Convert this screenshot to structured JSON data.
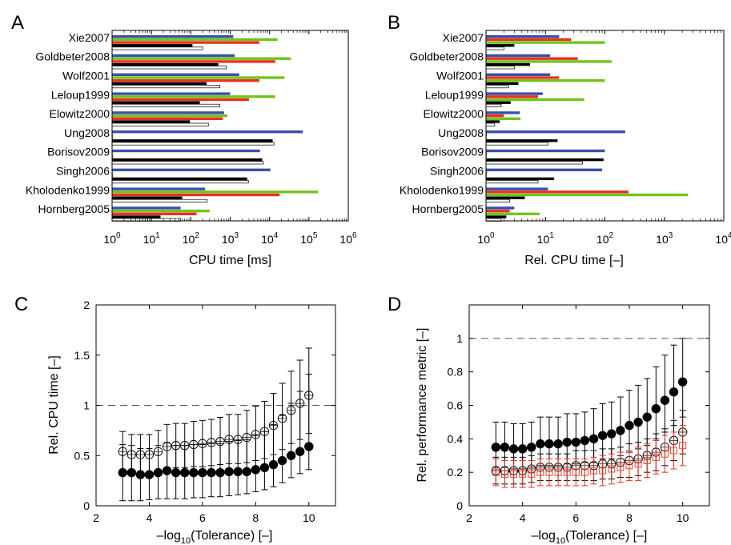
{
  "colors": {
    "blue": "#3a4fae",
    "red": "#e8321e",
    "green": "#72c41c",
    "black": "#000000",
    "white": "#ffffff",
    "dash": "#555555"
  },
  "chart_data": [
    {
      "panel": "A",
      "type": "bar",
      "orientation": "horizontal",
      "xscale": "log",
      "xlabel": "CPU time [ms]",
      "xlim": [
        1,
        1000000
      ],
      "xticks": [
        {
          "value": 1,
          "base": "10",
          "exp": "0"
        },
        {
          "value": 10,
          "base": "10",
          "exp": "1"
        },
        {
          "value": 100,
          "base": "10",
          "exp": "2"
        },
        {
          "value": 1000,
          "base": "10",
          "exp": "3"
        },
        {
          "value": 10000,
          "base": "10",
          "exp": "4"
        },
        {
          "value": 100000,
          "base": "10",
          "exp": "5"
        },
        {
          "value": 1000000,
          "base": "10",
          "exp": "6"
        }
      ],
      "categories": [
        "Xie2007",
        "Goldbeter2008",
        "Wolf2001",
        "Leloup1999",
        "Elowitz2000",
        "Ung2008",
        "Borisov2009",
        "Singh2006",
        "Kholodenko1999",
        "Hornberg2005"
      ],
      "series": [
        {
          "color": "blue",
          "values": [
            1200,
            1300,
            1700,
            1000,
            700,
            70000,
            5700,
            10500,
            230,
            55
          ]
        },
        {
          "color": "green",
          "values": [
            16000,
            35000,
            24000,
            14000,
            850,
            1,
            1,
            1,
            170000,
            300
          ]
        },
        {
          "color": "red",
          "values": [
            5500,
            14000,
            5500,
            3000,
            650,
            1,
            1,
            1,
            18000,
            140
          ]
        },
        {
          "color": "black",
          "values": [
            110,
            500,
            250,
            170,
            95,
            12000,
            6500,
            2700,
            60,
            17
          ]
        },
        {
          "color": "white",
          "values": [
            200,
            800,
            550,
            550,
            280,
            13000,
            7000,
            2900,
            260,
            55
          ]
        }
      ]
    },
    {
      "panel": "B",
      "type": "bar",
      "orientation": "horizontal",
      "xscale": "log",
      "xlabel": "Rel. CPU time [–]",
      "xlim": [
        1,
        10000
      ],
      "xticks": [
        {
          "value": 1,
          "base": "10",
          "exp": "0"
        },
        {
          "value": 10,
          "base": "10",
          "exp": "1"
        },
        {
          "value": 100,
          "base": "10",
          "exp": "2"
        },
        {
          "value": 1000,
          "base": "10",
          "exp": "3"
        },
        {
          "value": 10000,
          "base": "10",
          "exp": "4"
        }
      ],
      "categories": [
        "Xie2007",
        "Goldbeter2008",
        "Wolf2001",
        "Leloup1999",
        "Elowitz2000",
        "Ung2008",
        "Borisov2009",
        "Singh2006",
        "Kholodenko1999",
        "Hornberg2005"
      ],
      "series": [
        {
          "color": "blue",
          "values": [
            17,
            12,
            12,
            9,
            3.7,
            220,
            100,
            90,
            11,
            3
          ]
        },
        {
          "color": "red",
          "values": [
            27,
            35,
            17,
            7.5,
            2,
            1,
            1,
            1,
            250,
            2.5
          ]
        },
        {
          "color": "green",
          "values": [
            100,
            130,
            100,
            45,
            3.8,
            1,
            1,
            1,
            2500,
            8
          ]
        },
        {
          "color": "black",
          "values": [
            3,
            5.5,
            3.5,
            2.6,
            1.7,
            16,
            95,
            14,
            4.5,
            2.2
          ]
        },
        {
          "color": "white",
          "values": [
            2,
            3,
            2.4,
            1.8,
            1.4,
            11,
            42,
            7.5,
            2.5,
            1.8
          ]
        }
      ]
    },
    {
      "panel": "C",
      "type": "scatter",
      "xlabel_main": "–log",
      "xlabel_sub": "10",
      "xlabel_rest": "(Tolerance) [–]",
      "ylabel": "Rel. CPU time [–]",
      "xlim": [
        2,
        11
      ],
      "ylim": [
        0,
        2
      ],
      "xticks": [
        2,
        4,
        6,
        8,
        10
      ],
      "yticks": [
        0,
        0.5,
        1,
        1.5,
        2
      ],
      "reference_line": 1,
      "x": [
        3.0,
        3.333,
        3.667,
        4.0,
        4.333,
        4.667,
        5.0,
        5.333,
        5.667,
        6.0,
        6.333,
        6.667,
        7.0,
        7.333,
        7.667,
        8.0,
        8.333,
        8.667,
        9.0,
        9.333,
        9.667,
        10.0
      ],
      "series": [
        {
          "marker": "filled-circle",
          "values": [
            0.33,
            0.33,
            0.31,
            0.31,
            0.33,
            0.35,
            0.33,
            0.33,
            0.33,
            0.33,
            0.33,
            0.33,
            0.34,
            0.34,
            0.34,
            0.36,
            0.38,
            0.41,
            0.45,
            0.5,
            0.54,
            0.59
          ],
          "err_low": [
            0.28,
            0.28,
            0.26,
            0.25,
            0.26,
            0.28,
            0.26,
            0.26,
            0.25,
            0.25,
            0.24,
            0.24,
            0.24,
            0.23,
            0.22,
            0.22,
            0.22,
            0.22,
            0.22,
            0.22,
            0.22,
            0.23
          ],
          "err_high": [
            0.28,
            0.27,
            0.26,
            0.26,
            0.27,
            0.28,
            0.27,
            0.27,
            0.28,
            0.28,
            0.29,
            0.29,
            0.3,
            0.31,
            0.32,
            0.34,
            0.36,
            0.4,
            0.45,
            0.52,
            0.6,
            0.72
          ]
        },
        {
          "marker": "open-circle",
          "values": [
            0.54,
            0.51,
            0.51,
            0.51,
            0.54,
            0.59,
            0.6,
            0.6,
            0.61,
            0.62,
            0.63,
            0.64,
            0.66,
            0.66,
            0.68,
            0.71,
            0.74,
            0.8,
            0.87,
            0.95,
            1.02,
            1.1
          ],
          "err_low": [
            0.2,
            0.2,
            0.2,
            0.2,
            0.21,
            0.22,
            0.22,
            0.22,
            0.22,
            0.23,
            0.23,
            0.23,
            0.24,
            0.24,
            0.25,
            0.26,
            0.27,
            0.29,
            0.31,
            0.33,
            0.36,
            0.38
          ],
          "err_high": [
            0.2,
            0.2,
            0.2,
            0.2,
            0.21,
            0.22,
            0.22,
            0.22,
            0.23,
            0.23,
            0.23,
            0.24,
            0.25,
            0.25,
            0.27,
            0.28,
            0.3,
            0.32,
            0.35,
            0.39,
            0.43,
            0.47
          ]
        }
      ]
    },
    {
      "panel": "D",
      "type": "scatter",
      "xlabel_main": "–log",
      "xlabel_sub": "10",
      "xlabel_rest": "(Tolerance) [–]",
      "ylabel": "Rel. performance metric [–]",
      "xlim": [
        2,
        11
      ],
      "ylim": [
        0,
        1.2
      ],
      "xticks": [
        2,
        4,
        6,
        8,
        10
      ],
      "yticks": [
        0,
        0.2,
        0.4,
        0.6,
        0.8,
        1
      ],
      "reference_line": 1,
      "x": [
        3.0,
        3.333,
        3.667,
        4.0,
        4.333,
        4.667,
        5.0,
        5.333,
        5.667,
        6.0,
        6.333,
        6.667,
        7.0,
        7.333,
        7.667,
        8.0,
        8.333,
        8.667,
        9.0,
        9.333,
        9.667,
        10.0
      ],
      "series": [
        {
          "marker": "filled-circle",
          "values": [
            0.35,
            0.35,
            0.34,
            0.34,
            0.35,
            0.37,
            0.37,
            0.37,
            0.38,
            0.38,
            0.39,
            0.4,
            0.42,
            0.43,
            0.45,
            0.48,
            0.5,
            0.53,
            0.58,
            0.63,
            0.68,
            0.74
          ],
          "err_low": [
            0.12,
            0.12,
            0.12,
            0.12,
            0.12,
            0.13,
            0.13,
            0.13,
            0.13,
            0.13,
            0.13,
            0.14,
            0.14,
            0.15,
            0.15,
            0.16,
            0.16,
            0.17,
            0.18,
            0.19,
            0.2,
            0.21
          ],
          "err_high": [
            0.15,
            0.15,
            0.15,
            0.15,
            0.15,
            0.16,
            0.16,
            0.16,
            0.17,
            0.17,
            0.17,
            0.18,
            0.19,
            0.19,
            0.2,
            0.21,
            0.22,
            0.23,
            0.25,
            0.27,
            0.28,
            0.26
          ]
        },
        {
          "marker": "open-circle",
          "values": [
            0.21,
            0.21,
            0.21,
            0.21,
            0.22,
            0.23,
            0.23,
            0.23,
            0.23,
            0.24,
            0.24,
            0.24,
            0.25,
            0.25,
            0.26,
            0.27,
            0.28,
            0.3,
            0.32,
            0.35,
            0.39,
            0.44
          ],
          "err_low": [
            0.08,
            0.08,
            0.08,
            0.08,
            0.08,
            0.08,
            0.08,
            0.08,
            0.08,
            0.09,
            0.09,
            0.09,
            0.09,
            0.09,
            0.09,
            0.1,
            0.1,
            0.1,
            0.11,
            0.11,
            0.12,
            0.13
          ],
          "err_high": [
            0.08,
            0.08,
            0.08,
            0.08,
            0.08,
            0.08,
            0.08,
            0.08,
            0.08,
            0.09,
            0.09,
            0.09,
            0.09,
            0.09,
            0.09,
            0.1,
            0.1,
            0.1,
            0.11,
            0.11,
            0.12,
            0.13
          ]
        },
        {
          "marker": "open-square",
          "color": "red",
          "values": [
            0.2,
            0.19,
            0.19,
            0.19,
            0.19,
            0.2,
            0.2,
            0.2,
            0.2,
            0.2,
            0.2,
            0.21,
            0.21,
            0.22,
            0.23,
            0.24,
            0.25,
            0.27,
            0.29,
            0.31,
            0.33,
            0.36
          ],
          "err_low": [
            0.08,
            0.08,
            0.08,
            0.08,
            0.08,
            0.08,
            0.08,
            0.08,
            0.08,
            0.08,
            0.08,
            0.08,
            0.09,
            0.09,
            0.09,
            0.09,
            0.1,
            0.1,
            0.1,
            0.11,
            0.11,
            0.12
          ],
          "err_high": [
            0.08,
            0.08,
            0.08,
            0.08,
            0.08,
            0.08,
            0.08,
            0.08,
            0.08,
            0.08,
            0.08,
            0.08,
            0.09,
            0.09,
            0.09,
            0.09,
            0.1,
            0.1,
            0.1,
            0.11,
            0.11,
            0.12
          ]
        }
      ]
    }
  ]
}
